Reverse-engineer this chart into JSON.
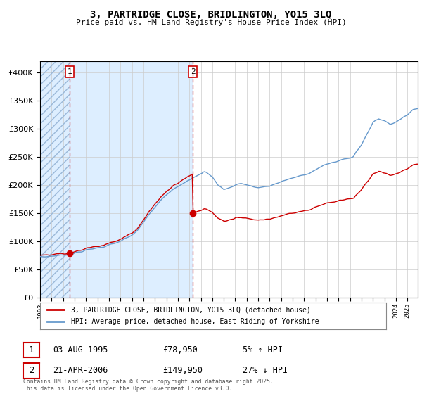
{
  "title": "3, PARTRIDGE CLOSE, BRIDLINGTON, YO15 3LQ",
  "subtitle": "Price paid vs. HM Land Registry's House Price Index (HPI)",
  "legend_line1": "3, PARTRIDGE CLOSE, BRIDLINGTON, YO15 3LQ (detached house)",
  "legend_line2": "HPI: Average price, detached house, East Riding of Yorkshire",
  "transaction1_label": "1",
  "transaction1_date": "03-AUG-1995",
  "transaction1_price": "£78,950",
  "transaction1_pct": "5% ↑ HPI",
  "transaction2_label": "2",
  "transaction2_date": "21-APR-2006",
  "transaction2_price": "£149,950",
  "transaction2_pct": "27% ↓ HPI",
  "footnote": "Contains HM Land Registry data © Crown copyright and database right 2025.\nThis data is licensed under the Open Government Licence v3.0.",
  "hatch_color": "#aac8e8",
  "bg_color": "#ddeeff",
  "red_line_color": "#cc0000",
  "blue_line_color": "#6699cc",
  "dashed_line_color": "#cc0000",
  "marker_color": "#cc0000",
  "grid_color": "#cccccc",
  "ylim": [
    0,
    420000
  ],
  "yticks": [
    0,
    50000,
    100000,
    150000,
    200000,
    250000,
    300000,
    350000,
    400000
  ],
  "transaction1_x": 1995.583,
  "transaction1_y": 78950,
  "transaction2_x": 2006.3,
  "transaction2_y": 149950,
  "xmin": 1993.0,
  "xmax": 2025.9,
  "hpi_keypoints": [
    [
      1993.0,
      72000
    ],
    [
      1993.5,
      72500
    ],
    [
      1994.0,
      73500
    ],
    [
      1994.5,
      74500
    ],
    [
      1995.0,
      75500
    ],
    [
      1995.5,
      76500
    ],
    [
      1996.0,
      79000
    ],
    [
      1996.5,
      81000
    ],
    [
      1997.0,
      84000
    ],
    [
      1997.5,
      86000
    ],
    [
      1998.0,
      88500
    ],
    [
      1998.5,
      90000
    ],
    [
      1999.0,
      93000
    ],
    [
      1999.5,
      96000
    ],
    [
      2000.0,
      100000
    ],
    [
      2000.5,
      105000
    ],
    [
      2001.0,
      110000
    ],
    [
      2001.5,
      120000
    ],
    [
      2002.0,
      133000
    ],
    [
      2002.5,
      148000
    ],
    [
      2003.0,
      160000
    ],
    [
      2003.5,
      172000
    ],
    [
      2004.0,
      183000
    ],
    [
      2004.5,
      192000
    ],
    [
      2005.0,
      198000
    ],
    [
      2005.5,
      204000
    ],
    [
      2006.0,
      208000
    ],
    [
      2006.3,
      212000
    ],
    [
      2006.5,
      214000
    ],
    [
      2007.0,
      220000
    ],
    [
      2007.3,
      224000
    ],
    [
      2007.5,
      222000
    ],
    [
      2008.0,
      214000
    ],
    [
      2008.5,
      200000
    ],
    [
      2009.0,
      192000
    ],
    [
      2009.5,
      195000
    ],
    [
      2010.0,
      200000
    ],
    [
      2010.5,
      203000
    ],
    [
      2011.0,
      200000
    ],
    [
      2011.5,
      197000
    ],
    [
      2012.0,
      195000
    ],
    [
      2012.5,
      196000
    ],
    [
      2013.0,
      198000
    ],
    [
      2013.5,
      202000
    ],
    [
      2014.0,
      206000
    ],
    [
      2014.5,
      209000
    ],
    [
      2015.0,
      212000
    ],
    [
      2015.5,
      215000
    ],
    [
      2016.0,
      218000
    ],
    [
      2016.5,
      222000
    ],
    [
      2017.0,
      227000
    ],
    [
      2017.5,
      232000
    ],
    [
      2018.0,
      237000
    ],
    [
      2018.5,
      240000
    ],
    [
      2019.0,
      243000
    ],
    [
      2019.5,
      246000
    ],
    [
      2020.0,
      248000
    ],
    [
      2020.3,
      250000
    ],
    [
      2020.5,
      258000
    ],
    [
      2021.0,
      272000
    ],
    [
      2021.5,
      292000
    ],
    [
      2022.0,
      310000
    ],
    [
      2022.5,
      318000
    ],
    [
      2023.0,
      314000
    ],
    [
      2023.5,
      308000
    ],
    [
      2024.0,
      312000
    ],
    [
      2024.5,
      318000
    ],
    [
      2025.0,
      326000
    ],
    [
      2025.5,
      334000
    ],
    [
      2025.9,
      336000
    ]
  ]
}
